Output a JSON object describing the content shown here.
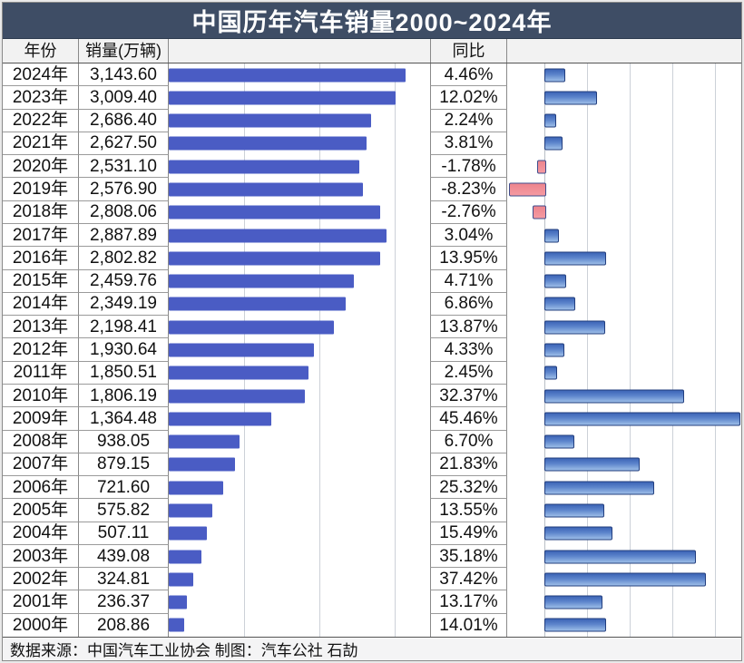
{
  "title": "中国历年汽车销量2000~2024年",
  "headers": {
    "year": "年份",
    "sales": "销量(万辆)",
    "yoy": "同比"
  },
  "footer": "数据来源：中国汽车工业协会   制图：汽车公社 石劼",
  "colors": {
    "title_bg": "#3e4d65",
    "title_text": "#ffffff",
    "sales_bar": "#4a5cc4",
    "yoy_positive_top": "#3c64b6",
    "yoy_positive_bottom": "#9dbee8",
    "yoy_positive_border": "#223e7e",
    "yoy_negative_fill": "#ee878f",
    "yoy_negative_border": "#3e4e8e",
    "gridline": "#ccd1d8"
  },
  "rows": [
    {
      "year": "2024年",
      "sales": "3,143.60",
      "yoy": "4.46%"
    },
    {
      "year": "2023年",
      "sales": "3,009.40",
      "yoy": "12.02%"
    },
    {
      "year": "2022年",
      "sales": "2,686.40",
      "yoy": "2.24%"
    },
    {
      "year": "2021年",
      "sales": "2,627.50",
      "yoy": "3.81%"
    },
    {
      "year": "2020年",
      "sales": "2,531.10",
      "yoy": "-1.78%"
    },
    {
      "year": "2019年",
      "sales": "2,576.90",
      "yoy": "-8.23%"
    },
    {
      "year": "2018年",
      "sales": "2,808.06",
      "yoy": "-2.76%"
    },
    {
      "year": "2017年",
      "sales": "2,887.89",
      "yoy": "3.04%"
    },
    {
      "year": "2016年",
      "sales": "2,802.82",
      "yoy": "13.95%"
    },
    {
      "year": "2015年",
      "sales": "2,459.76",
      "yoy": "4.71%"
    },
    {
      "year": "2014年",
      "sales": "2,349.19",
      "yoy": "6.86%"
    },
    {
      "year": "2013年",
      "sales": "2,198.41",
      "yoy": "13.87%"
    },
    {
      "year": "2012年",
      "sales": "1,930.64",
      "yoy": "4.33%"
    },
    {
      "year": "2011年",
      "sales": "1,850.51",
      "yoy": "2.45%"
    },
    {
      "year": "2010年",
      "sales": "1,806.19",
      "yoy": "32.37%"
    },
    {
      "year": "2009年",
      "sales": "1,364.48",
      "yoy": "45.46%"
    },
    {
      "year": "2008年",
      "sales": "938.05",
      "yoy": "6.70%"
    },
    {
      "year": "2007年",
      "sales": "879.15",
      "yoy": "21.83%"
    },
    {
      "year": "2006年",
      "sales": "721.60",
      "yoy": "25.32%"
    },
    {
      "year": "2005年",
      "sales": "575.82",
      "yoy": "13.55%"
    },
    {
      "year": "2004年",
      "sales": "507.11",
      "yoy": "15.49%"
    },
    {
      "year": "2003年",
      "sales": "439.08",
      "yoy": "35.18%"
    },
    {
      "year": "2002年",
      "sales": "324.81",
      "yoy": "37.42%"
    },
    {
      "year": "2001年",
      "sales": "236.37",
      "yoy": "13.17%"
    },
    {
      "year": "2000年",
      "sales": "208.86",
      "yoy": "14.01%"
    }
  ],
  "chart_data": {
    "type": "bar",
    "orientation": "horizontal",
    "title": "中国历年汽车销量2000~2024年",
    "categories": [
      "2024年",
      "2023年",
      "2022年",
      "2021年",
      "2020年",
      "2019年",
      "2018年",
      "2017年",
      "2016年",
      "2015年",
      "2014年",
      "2013年",
      "2012年",
      "2011年",
      "2010年",
      "2009年",
      "2008年",
      "2007年",
      "2006年",
      "2005年",
      "2004年",
      "2003年",
      "2002年",
      "2001年",
      "2000年"
    ],
    "series": [
      {
        "name": "销量(万辆)",
        "values": [
          3143.6,
          3009.4,
          2686.4,
          2627.5,
          2531.1,
          2576.9,
          2808.06,
          2887.89,
          2802.82,
          2459.76,
          2349.19,
          2198.41,
          1930.64,
          1850.51,
          1806.19,
          1364.48,
          938.05,
          879.15,
          721.6,
          575.82,
          507.11,
          439.08,
          324.81,
          236.37,
          208.86
        ]
      },
      {
        "name": "同比(%)",
        "values": [
          4.46,
          12.02,
          2.24,
          3.81,
          -1.78,
          -8.23,
          -2.76,
          3.04,
          13.95,
          4.71,
          6.86,
          13.87,
          4.33,
          2.45,
          32.37,
          45.46,
          6.7,
          21.83,
          25.32,
          13.55,
          15.49,
          35.18,
          37.42,
          13.17,
          14.01
        ]
      }
    ],
    "sales_axis": {
      "min": 0,
      "max": 3470,
      "gridlines": [
        1000,
        2000,
        3000
      ]
    },
    "yoy_axis": {
      "min": -8.7,
      "max": 46.8,
      "gridlines": [
        0,
        10,
        20,
        30,
        40
      ]
    },
    "grid": true,
    "legend": "none"
  }
}
